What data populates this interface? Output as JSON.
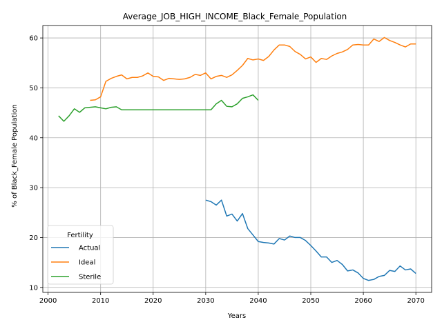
{
  "chart_data": {
    "type": "line",
    "title": "Average_JOB_HIGH_INCOME_Black_Female_Population",
    "xlabel": "Years",
    "ylabel": "% of Black_Female Population",
    "xlim": [
      1999,
      2073
    ],
    "ylim": [
      9,
      62.5
    ],
    "xticks": [
      2000,
      2010,
      2020,
      2030,
      2040,
      2050,
      2060,
      2070
    ],
    "yticks": [
      10,
      20,
      30,
      40,
      50,
      60
    ],
    "grid": true,
    "legend": {
      "title": "Fertility",
      "placement": "lower-left"
    },
    "series": [
      {
        "name": "Actual",
        "color": "#1f77b4",
        "points": [
          [
            2030,
            27.5
          ],
          [
            2031,
            27.2
          ],
          [
            2032,
            26.5
          ],
          [
            2033,
            27.5
          ],
          [
            2034,
            24.3
          ],
          [
            2035,
            24.7
          ],
          [
            2036,
            23.3
          ],
          [
            2037,
            24.8
          ],
          [
            2038,
            21.8
          ],
          [
            2039,
            20.5
          ],
          [
            2040,
            19.2
          ],
          [
            2041,
            19.0
          ],
          [
            2042,
            18.9
          ],
          [
            2043,
            18.7
          ],
          [
            2044,
            19.8
          ],
          [
            2045,
            19.5
          ],
          [
            2046,
            20.3
          ],
          [
            2047,
            20.0
          ],
          [
            2048,
            20.0
          ],
          [
            2049,
            19.4
          ],
          [
            2050,
            18.4
          ],
          [
            2051,
            17.3
          ],
          [
            2052,
            16.1
          ],
          [
            2053,
            16.1
          ],
          [
            2054,
            15.0
          ],
          [
            2055,
            15.4
          ],
          [
            2056,
            14.6
          ],
          [
            2057,
            13.3
          ],
          [
            2058,
            13.5
          ],
          [
            2059,
            12.9
          ],
          [
            2060,
            11.8
          ],
          [
            2061,
            11.4
          ],
          [
            2062,
            11.6
          ],
          [
            2063,
            12.2
          ],
          [
            2064,
            12.4
          ],
          [
            2065,
            13.4
          ],
          [
            2066,
            13.2
          ],
          [
            2067,
            14.3
          ],
          [
            2068,
            13.5
          ],
          [
            2069,
            13.7
          ],
          [
            2070,
            12.8
          ]
        ]
      },
      {
        "name": "Ideal",
        "color": "#ff7f0e",
        "points": [
          [
            2008,
            47.5
          ],
          [
            2009,
            47.6
          ],
          [
            2010,
            48.2
          ],
          [
            2011,
            51.3
          ],
          [
            2012,
            51.9
          ],
          [
            2013,
            52.3
          ],
          [
            2014,
            52.6
          ],
          [
            2015,
            51.8
          ],
          [
            2016,
            52.1
          ],
          [
            2017,
            52.1
          ],
          [
            2018,
            52.4
          ],
          [
            2019,
            53.0
          ],
          [
            2020,
            52.3
          ],
          [
            2021,
            52.2
          ],
          [
            2022,
            51.5
          ],
          [
            2023,
            51.9
          ],
          [
            2024,
            51.8
          ],
          [
            2025,
            51.7
          ],
          [
            2026,
            51.8
          ],
          [
            2027,
            52.1
          ],
          [
            2028,
            52.7
          ],
          [
            2029,
            52.5
          ],
          [
            2030,
            53.0
          ],
          [
            2031,
            51.8
          ],
          [
            2032,
            52.3
          ],
          [
            2033,
            52.5
          ],
          [
            2034,
            52.1
          ],
          [
            2035,
            52.6
          ],
          [
            2036,
            53.5
          ],
          [
            2037,
            54.5
          ],
          [
            2038,
            55.9
          ],
          [
            2039,
            55.6
          ],
          [
            2040,
            55.8
          ],
          [
            2041,
            55.5
          ],
          [
            2042,
            56.3
          ],
          [
            2043,
            57.6
          ],
          [
            2044,
            58.6
          ],
          [
            2045,
            58.6
          ],
          [
            2046,
            58.3
          ],
          [
            2047,
            57.3
          ],
          [
            2048,
            56.7
          ],
          [
            2049,
            55.8
          ],
          [
            2050,
            56.2
          ],
          [
            2051,
            55.1
          ],
          [
            2052,
            55.9
          ],
          [
            2053,
            55.7
          ],
          [
            2054,
            56.4
          ],
          [
            2055,
            56.9
          ],
          [
            2056,
            57.2
          ],
          [
            2057,
            57.7
          ],
          [
            2058,
            58.6
          ],
          [
            2059,
            58.7
          ],
          [
            2060,
            58.6
          ],
          [
            2061,
            58.6
          ],
          [
            2062,
            59.8
          ],
          [
            2063,
            59.3
          ],
          [
            2064,
            60.1
          ],
          [
            2065,
            59.5
          ],
          [
            2066,
            59.1
          ],
          [
            2067,
            58.6
          ],
          [
            2068,
            58.2
          ],
          [
            2069,
            58.8
          ],
          [
            2070,
            58.8
          ]
        ]
      },
      {
        "name": "Sterile",
        "color": "#2ca02c",
        "points": [
          [
            2002,
            44.4
          ],
          [
            2003,
            43.3
          ],
          [
            2004,
            44.4
          ],
          [
            2005,
            45.8
          ],
          [
            2006,
            45.1
          ],
          [
            2007,
            46.0
          ],
          [
            2008,
            46.1
          ],
          [
            2009,
            46.2
          ],
          [
            2010,
            46.0
          ],
          [
            2011,
            45.8
          ],
          [
            2012,
            46.1
          ],
          [
            2013,
            46.2
          ],
          [
            2014,
            45.6
          ],
          [
            2015,
            45.6
          ],
          [
            2016,
            45.6
          ],
          [
            2017,
            45.6
          ],
          [
            2018,
            45.6
          ],
          [
            2019,
            45.6
          ],
          [
            2020,
            45.6
          ],
          [
            2021,
            45.6
          ],
          [
            2022,
            45.6
          ],
          [
            2023,
            45.6
          ],
          [
            2024,
            45.6
          ],
          [
            2025,
            45.6
          ],
          [
            2026,
            45.6
          ],
          [
            2027,
            45.6
          ],
          [
            2028,
            45.6
          ],
          [
            2029,
            45.6
          ],
          [
            2030,
            45.6
          ],
          [
            2031,
            45.6
          ],
          [
            2032,
            46.8
          ],
          [
            2033,
            47.5
          ],
          [
            2034,
            46.3
          ],
          [
            2035,
            46.2
          ],
          [
            2036,
            46.8
          ],
          [
            2037,
            47.9
          ],
          [
            2038,
            48.2
          ],
          [
            2039,
            48.6
          ],
          [
            2040,
            47.5
          ]
        ]
      }
    ]
  }
}
